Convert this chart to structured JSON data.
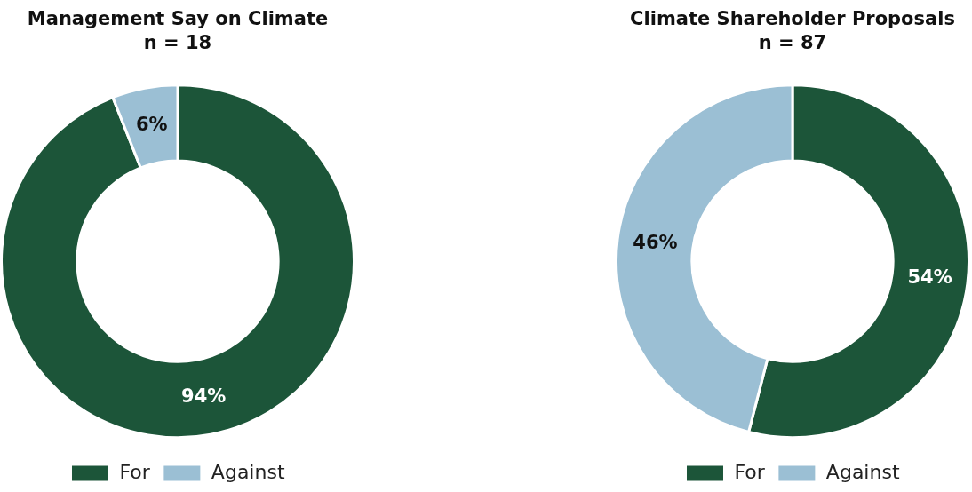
{
  "chart_data": [
    {
      "type": "donut",
      "title": "Management Say on Climate",
      "subtitle": "n = 18",
      "categories": [
        "For",
        "Against"
      ],
      "values": [
        94,
        6
      ],
      "colors": [
        "#1c5539",
        "#9bbfd4"
      ],
      "value_labels": [
        "94%",
        "6%"
      ],
      "legend": "bottom"
    },
    {
      "type": "donut",
      "title": "Climate Shareholder Proposals",
      "subtitle": "n = 87",
      "categories": [
        "For",
        "Against"
      ],
      "values": [
        54,
        46
      ],
      "colors": [
        "#1c5539",
        "#9bbfd4"
      ],
      "value_labels": [
        "54%",
        "46%"
      ],
      "legend": "bottom"
    }
  ]
}
